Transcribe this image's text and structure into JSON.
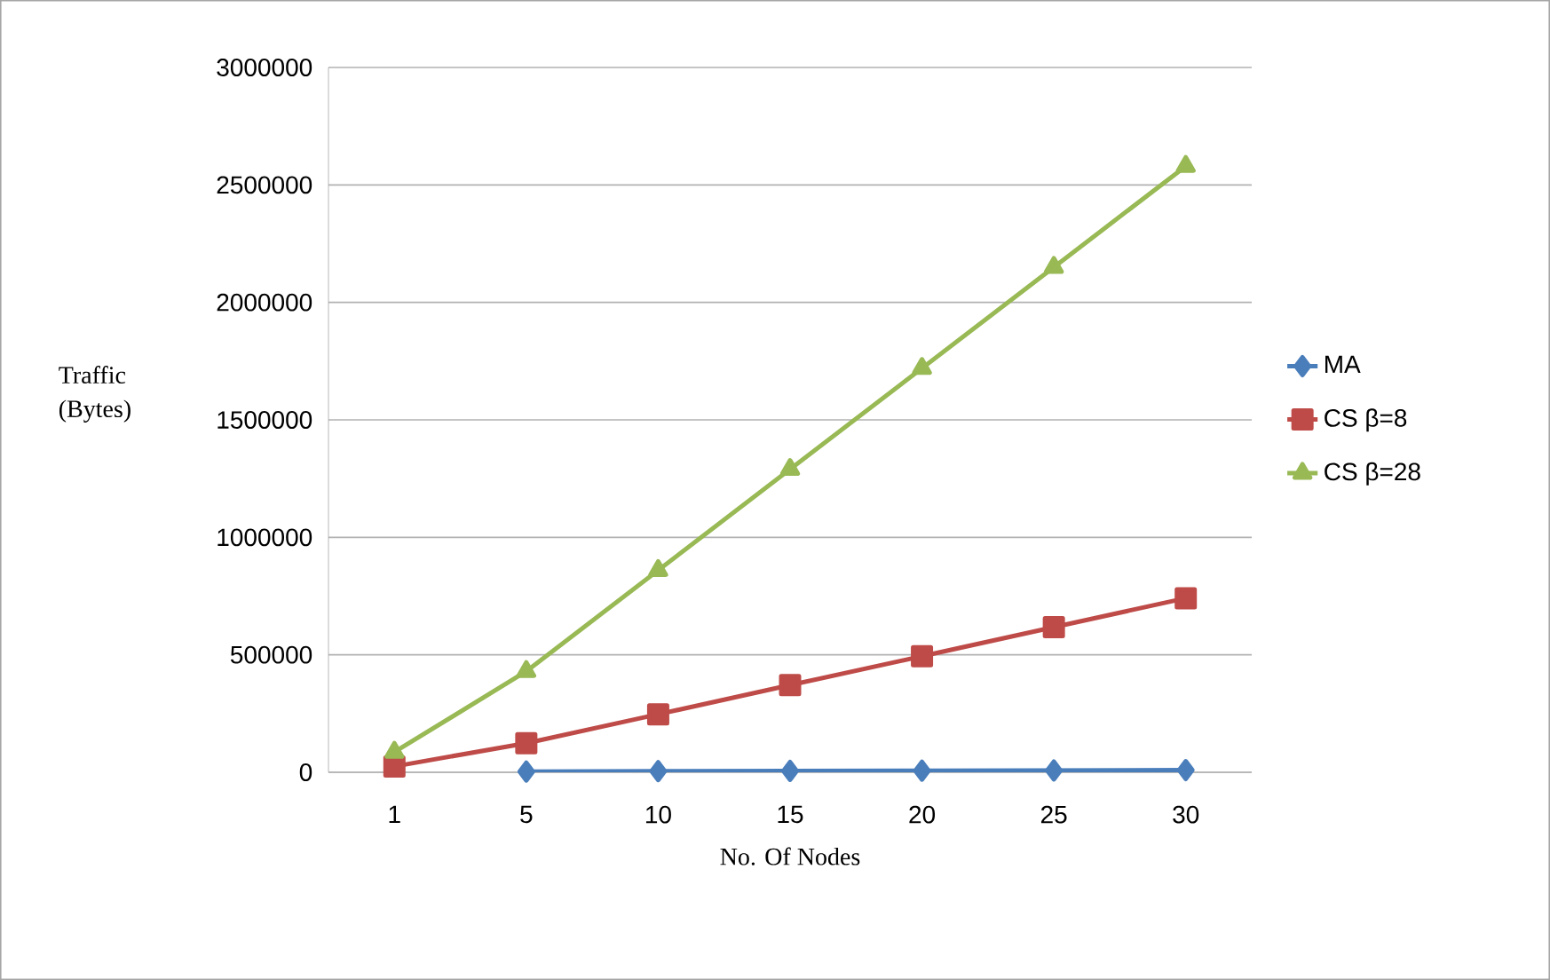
{
  "chart_data": {
    "type": "line",
    "xlabel": "No.  Of Nodes",
    "ylabel": "Traffic (Bytes)",
    "categories": [
      "1",
      "5",
      "10",
      "15",
      "20",
      "25",
      "30"
    ],
    "series": [
      {
        "name": "MA",
        "color": "#4a7ebb",
        "marker": "diamond",
        "values": [
          null,
          3000,
          5000,
          6000,
          7000,
          8000,
          9000
        ]
      },
      {
        "name": "CS β=8",
        "color": "#be4b48",
        "marker": "square",
        "values": [
          25000,
          124000,
          247000,
          371000,
          494000,
          618000,
          741000
        ]
      },
      {
        "name": "CS β=28",
        "color": "#98b954",
        "marker": "triangle",
        "values": [
          86000,
          430000,
          860000,
          1290000,
          1720000,
          2150000,
          2580000
        ]
      }
    ],
    "ylim": [
      0,
      3000000
    ],
    "yticks": [
      0,
      500000,
      1000000,
      1500000,
      2000000,
      2500000,
      3000000
    ],
    "grid": "y",
    "legend": "right"
  }
}
